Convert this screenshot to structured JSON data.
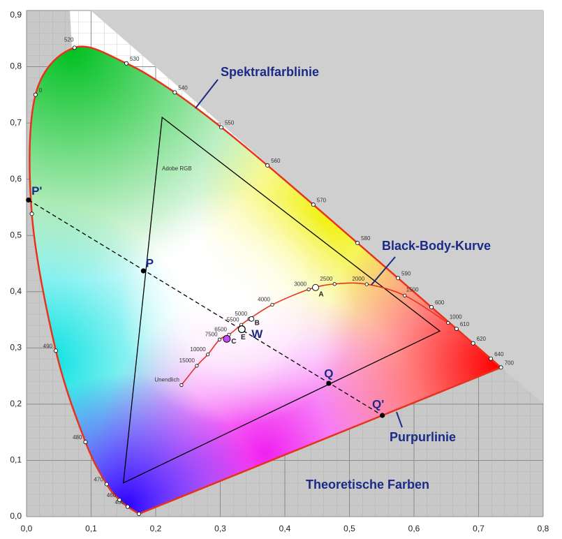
{
  "chart_data": {
    "type": "chromaticity",
    "xlim": [
      0,
      0.8
    ],
    "ylim": [
      0,
      0.9
    ],
    "xticks": [
      {
        "value": 0,
        "label": "0,0"
      },
      {
        "value": 0.1,
        "label": "0,1"
      },
      {
        "value": 0.2,
        "label": "0,2"
      },
      {
        "value": 0.3,
        "label": "0,3"
      },
      {
        "value": 0.4,
        "label": "0,4"
      },
      {
        "value": 0.5,
        "label": "0,5"
      },
      {
        "value": 0.6,
        "label": "0,6"
      },
      {
        "value": 0.7,
        "label": "0,7"
      },
      {
        "value": 0.8,
        "label": "0,8"
      }
    ],
    "yticks": [
      {
        "value": 0,
        "label": "0,0"
      },
      {
        "value": 0.1,
        "label": "0,1"
      },
      {
        "value": 0.2,
        "label": "0,2"
      },
      {
        "value": 0.3,
        "label": "0,3"
      },
      {
        "value": 0.4,
        "label": "0,4"
      },
      {
        "value": 0.5,
        "label": "0,5"
      },
      {
        "value": 0.6,
        "label": "0,6"
      },
      {
        "value": 0.7,
        "label": "0,7"
      },
      {
        "value": 0.8,
        "label": "0,8"
      },
      {
        "value": 0.9,
        "label": "0,9"
      }
    ],
    "grid": true,
    "spectral_locus": {
      "color": "#e8331c",
      "labels": [
        null,
        "450",
        "460",
        "470",
        "480",
        "490",
        null,
        "0",
        "520",
        "530",
        "540",
        "550",
        "560",
        "570",
        "580",
        "590",
        "600",
        "610",
        "620",
        "640",
        "700"
      ],
      "x": [
        0.1741,
        0.1566,
        0.144,
        0.1241,
        0.0913,
        0.0454,
        0.0082,
        0.0139,
        0.0743,
        0.1547,
        0.2296,
        0.3016,
        0.3731,
        0.4441,
        0.5125,
        0.5752,
        0.627,
        0.6658,
        0.6915,
        0.719,
        0.7347
      ],
      "y": [
        0.005,
        0.0177,
        0.0297,
        0.0578,
        0.1327,
        0.295,
        0.5384,
        0.7502,
        0.8338,
        0.8059,
        0.7543,
        0.6923,
        0.6245,
        0.5547,
        0.4866,
        0.4242,
        0.3725,
        0.334,
        0.3083,
        0.2809,
        0.2653
      ]
    },
    "blackbody": {
      "color": "#e8331c",
      "labels": [
        "1000",
        "1500",
        "2000",
        "2500",
        "3000",
        "4000",
        "5000",
        "5500",
        "6500",
        "7500",
        "10000",
        "15000",
        "Unendlich"
      ],
      "x": [
        0.6528,
        0.5857,
        0.5267,
        0.477,
        0.4369,
        0.3805,
        0.3451,
        0.3325,
        0.3135,
        0.299,
        0.2807,
        0.2637,
        0.2399
      ],
      "y": [
        0.3444,
        0.3931,
        0.4133,
        0.4137,
        0.4041,
        0.3768,
        0.3516,
        0.3411,
        0.3236,
        0.315,
        0.2884,
        0.2683,
        0.234
      ]
    },
    "gamut": {
      "label": "Adobe RGB",
      "color": "#000000",
      "x": [
        0.64,
        0.21,
        0.15
      ],
      "y": [
        0.33,
        0.71,
        0.06
      ]
    },
    "named_points": [
      {
        "label": "P'",
        "x": 0.003,
        "y": 0.563
      },
      {
        "label": "P",
        "x": 0.181,
        "y": 0.437
      },
      {
        "label": "Q",
        "x": 0.468,
        "y": 0.237
      },
      {
        "label": "Q'",
        "x": 0.551,
        "y": 0.18
      },
      {
        "label": "W",
        "x": 0.3333,
        "y": 0.3333
      }
    ],
    "illuminants": [
      {
        "label": "A",
        "x": 0.4476,
        "y": 0.4074
      },
      {
        "label": "B",
        "x": 0.3484,
        "y": 0.3516
      },
      {
        "label": "C",
        "x": 0.3101,
        "y": 0.3162
      },
      {
        "label": "E",
        "x": 0.3333,
        "y": 0.3333
      }
    ],
    "annotations": [
      "Spektralfarblinie",
      "Black-Body-Kurve",
      "Purpurlinie",
      "Theoretische Farben"
    ]
  }
}
